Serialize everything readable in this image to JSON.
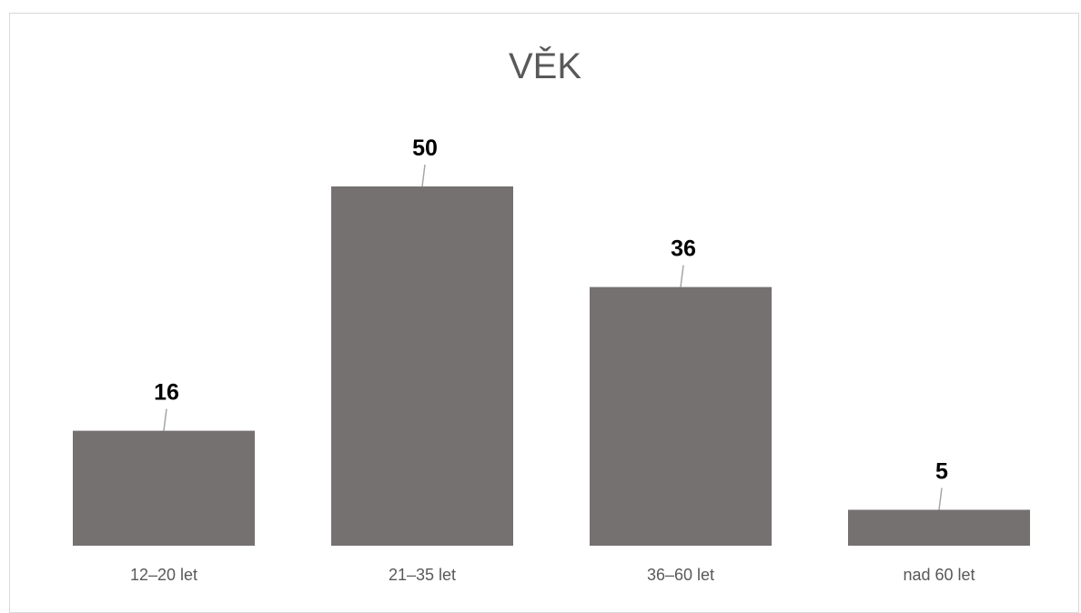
{
  "chart_data": {
    "type": "bar",
    "title": "VĚK",
    "categories": [
      "12–20 let",
      "21–35 let",
      "36–60 let",
      "nad 60 let"
    ],
    "values": [
      16,
      50,
      36,
      5
    ],
    "data_labels": [
      "16",
      "50",
      "36",
      "5"
    ],
    "xlabel": "",
    "ylabel": "",
    "grid": false,
    "legend": "none",
    "colors": {
      "bar": "#757170",
      "leader": "#a6a6a6"
    }
  }
}
